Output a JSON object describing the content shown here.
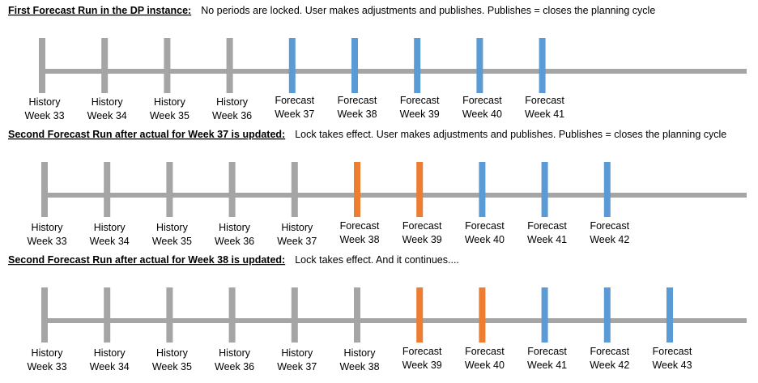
{
  "sections": [
    {
      "heading": "First Forecast Run in the DP instance:",
      "description": "No periods are locked. User makes adjustments and publishes. Publishes = closes the planning cycle",
      "ticks": [
        {
          "lines": [
            "History",
            "Week 33"
          ],
          "color": "#a5a5a5"
        },
        {
          "lines": [
            "History",
            "Week 34"
          ],
          "color": "#a5a5a5"
        },
        {
          "lines": [
            "History",
            "Week 35"
          ],
          "color": "#a5a5a5"
        },
        {
          "lines": [
            "History",
            "Week 36"
          ],
          "color": "#a5a5a5"
        },
        {
          "lines": [
            "Forecast",
            "Week 37"
          ],
          "color": "#5b9bd5"
        },
        {
          "lines": [
            "Forecast",
            "Week 38"
          ],
          "color": "#5b9bd5"
        },
        {
          "lines": [
            "Forecast",
            "Week 39"
          ],
          "color": "#5b9bd5"
        },
        {
          "lines": [
            "Forecast",
            "Week 40"
          ],
          "color": "#5b9bd5"
        },
        {
          "lines": [
            "Forecast",
            "Week 41"
          ],
          "color": "#5b9bd5"
        }
      ]
    },
    {
      "heading": "Second Forecast Run after actual for Week 37 is updated:",
      "description": "Lock takes effect. User makes adjustments and publishes. Publishes = closes the planning cycle",
      "ticks": [
        {
          "lines": [
            "History",
            "Week 33"
          ],
          "color": "#a5a5a5"
        },
        {
          "lines": [
            "History",
            "Week 34"
          ],
          "color": "#a5a5a5"
        },
        {
          "lines": [
            "History",
            "Week 35"
          ],
          "color": "#a5a5a5"
        },
        {
          "lines": [
            "History",
            "Week 36"
          ],
          "color": "#a5a5a5"
        },
        {
          "lines": [
            "History",
            "Week 37"
          ],
          "color": "#a5a5a5"
        },
        {
          "lines": [
            "Forecast",
            "Week 38"
          ],
          "color": "#ed7d31"
        },
        {
          "lines": [
            "Forecast",
            "Week 39"
          ],
          "color": "#ed7d31"
        },
        {
          "lines": [
            "Forecast",
            "Week 40"
          ],
          "color": "#5b9bd5"
        },
        {
          "lines": [
            "Forecast",
            "Week 41"
          ],
          "color": "#5b9bd5"
        },
        {
          "lines": [
            "Forecast",
            "Week 42"
          ],
          "color": "#5b9bd5"
        }
      ]
    },
    {
      "heading": "Second Forecast Run after actual for Week 38 is updated:",
      "description": "Lock takes effect. And it continues....",
      "ticks": [
        {
          "lines": [
            "History",
            "Week 33"
          ],
          "color": "#a5a5a5"
        },
        {
          "lines": [
            "History",
            "Week 34"
          ],
          "color": "#a5a5a5"
        },
        {
          "lines": [
            "History",
            "Week 35"
          ],
          "color": "#a5a5a5"
        },
        {
          "lines": [
            "History",
            "Week 36"
          ],
          "color": "#a5a5a5"
        },
        {
          "lines": [
            "History",
            "Week 37"
          ],
          "color": "#a5a5a5"
        },
        {
          "lines": [
            "History",
            "Week 38"
          ],
          "color": "#a5a5a5"
        },
        {
          "lines": [
            "Forecast",
            "Week 39"
          ],
          "color": "#ed7d31"
        },
        {
          "lines": [
            "Forecast",
            "Week 40"
          ],
          "color": "#ed7d31"
        },
        {
          "lines": [
            "Forecast",
            "Week 41"
          ],
          "color": "#5b9bd5"
        },
        {
          "lines": [
            "Forecast",
            "Week 42"
          ],
          "color": "#5b9bd5"
        },
        {
          "lines": [
            "Forecast",
            "Week 43"
          ],
          "color": "#5b9bd5"
        }
      ]
    }
  ]
}
